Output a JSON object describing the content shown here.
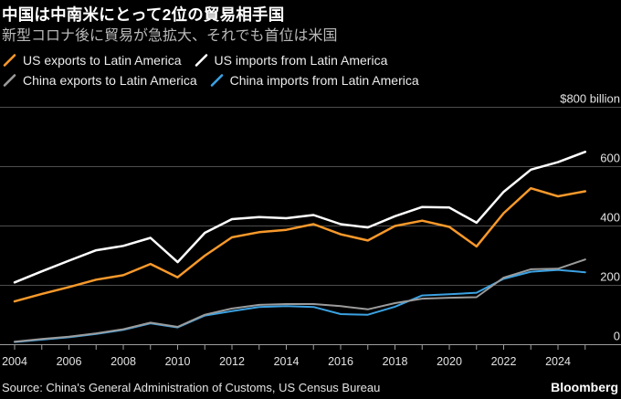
{
  "header": {
    "title": "中国は中南米にとって2位の貿易相手国",
    "subtitle": "新型コロナ後に貿易が急拡大、それでも首位は米国"
  },
  "legend": {
    "items": [
      {
        "label": "US exports to Latin America",
        "color": "#f8992b"
      },
      {
        "label": "US imports from Latin America",
        "color": "#ffffff"
      },
      {
        "label": "China exports to Latin America",
        "color": "#9b9b9b"
      },
      {
        "label": "China imports from Latin America",
        "color": "#3ba2e3"
      }
    ]
  },
  "chart_data": {
    "type": "line",
    "title": "中国は中南米にとって2位の貿易相手国",
    "subtitle": "新型コロナ後に貿易が急拡大、それでも首位は米国",
    "unit_label": "$800 billion",
    "xlabel": "",
    "ylabel": "$ billion",
    "ylim": [
      0,
      800
    ],
    "y_ticks": [
      0,
      200,
      400,
      600,
      800
    ],
    "y_tick_labels": [
      "0",
      "200",
      "400",
      "600",
      "$800 billion"
    ],
    "x_tick_labels": [
      "2004",
      "2006",
      "2008",
      "2010",
      "2012",
      "2014",
      "2016",
      "2018",
      "2020",
      "2022",
      "2024"
    ],
    "grid": true,
    "legend_position": "top",
    "background": "#000000",
    "grid_color": "#4d4d4d",
    "axis_color": "#9e9e9e",
    "label_color": "#e3e3e3",
    "x": [
      2004,
      2005,
      2006,
      2007,
      2008,
      2009,
      2010,
      2011,
      2012,
      2013,
      2014,
      2015,
      2016,
      2017,
      2018,
      2019,
      2020,
      2021,
      2022,
      2023,
      2024,
      2025
    ],
    "series": [
      {
        "name": "US exports to Latin America",
        "color": "#f8992b",
        "values": [
          146,
          171,
          194,
          219,
          234,
          272,
          227,
          300,
          362,
          379,
          387,
          406,
          372,
          351,
          400,
          418,
          397,
          331,
          443,
          527,
          500,
          517
        ]
      },
      {
        "name": "US imports from Latin America",
        "color": "#ffffff",
        "values": [
          210,
          247,
          283,
          318,
          333,
          360,
          278,
          377,
          423,
          430,
          426,
          437,
          406,
          395,
          433,
          464,
          462,
          411,
          515,
          590,
          615,
          650
        ]
      },
      {
        "name": "China exports to Latin America",
        "color": "#9b9b9b",
        "values": [
          10,
          19,
          27,
          38,
          52,
          74,
          60,
          101,
          122,
          134,
          137,
          137,
          130,
          119,
          140,
          155,
          158,
          160,
          226,
          254,
          256,
          287
        ]
      },
      {
        "name": "China imports from Latin America",
        "color": "#3ba2e3",
        "values": [
          9,
          17,
          25,
          36,
          50,
          72,
          58,
          98,
          113,
          127,
          130,
          127,
          103,
          101,
          128,
          166,
          170,
          175,
          222,
          246,
          252,
          244
        ]
      }
    ]
  },
  "footer": {
    "source": "Source: China's General Administration of Customs, US Census Bureau",
    "brand": "Bloomberg"
  }
}
